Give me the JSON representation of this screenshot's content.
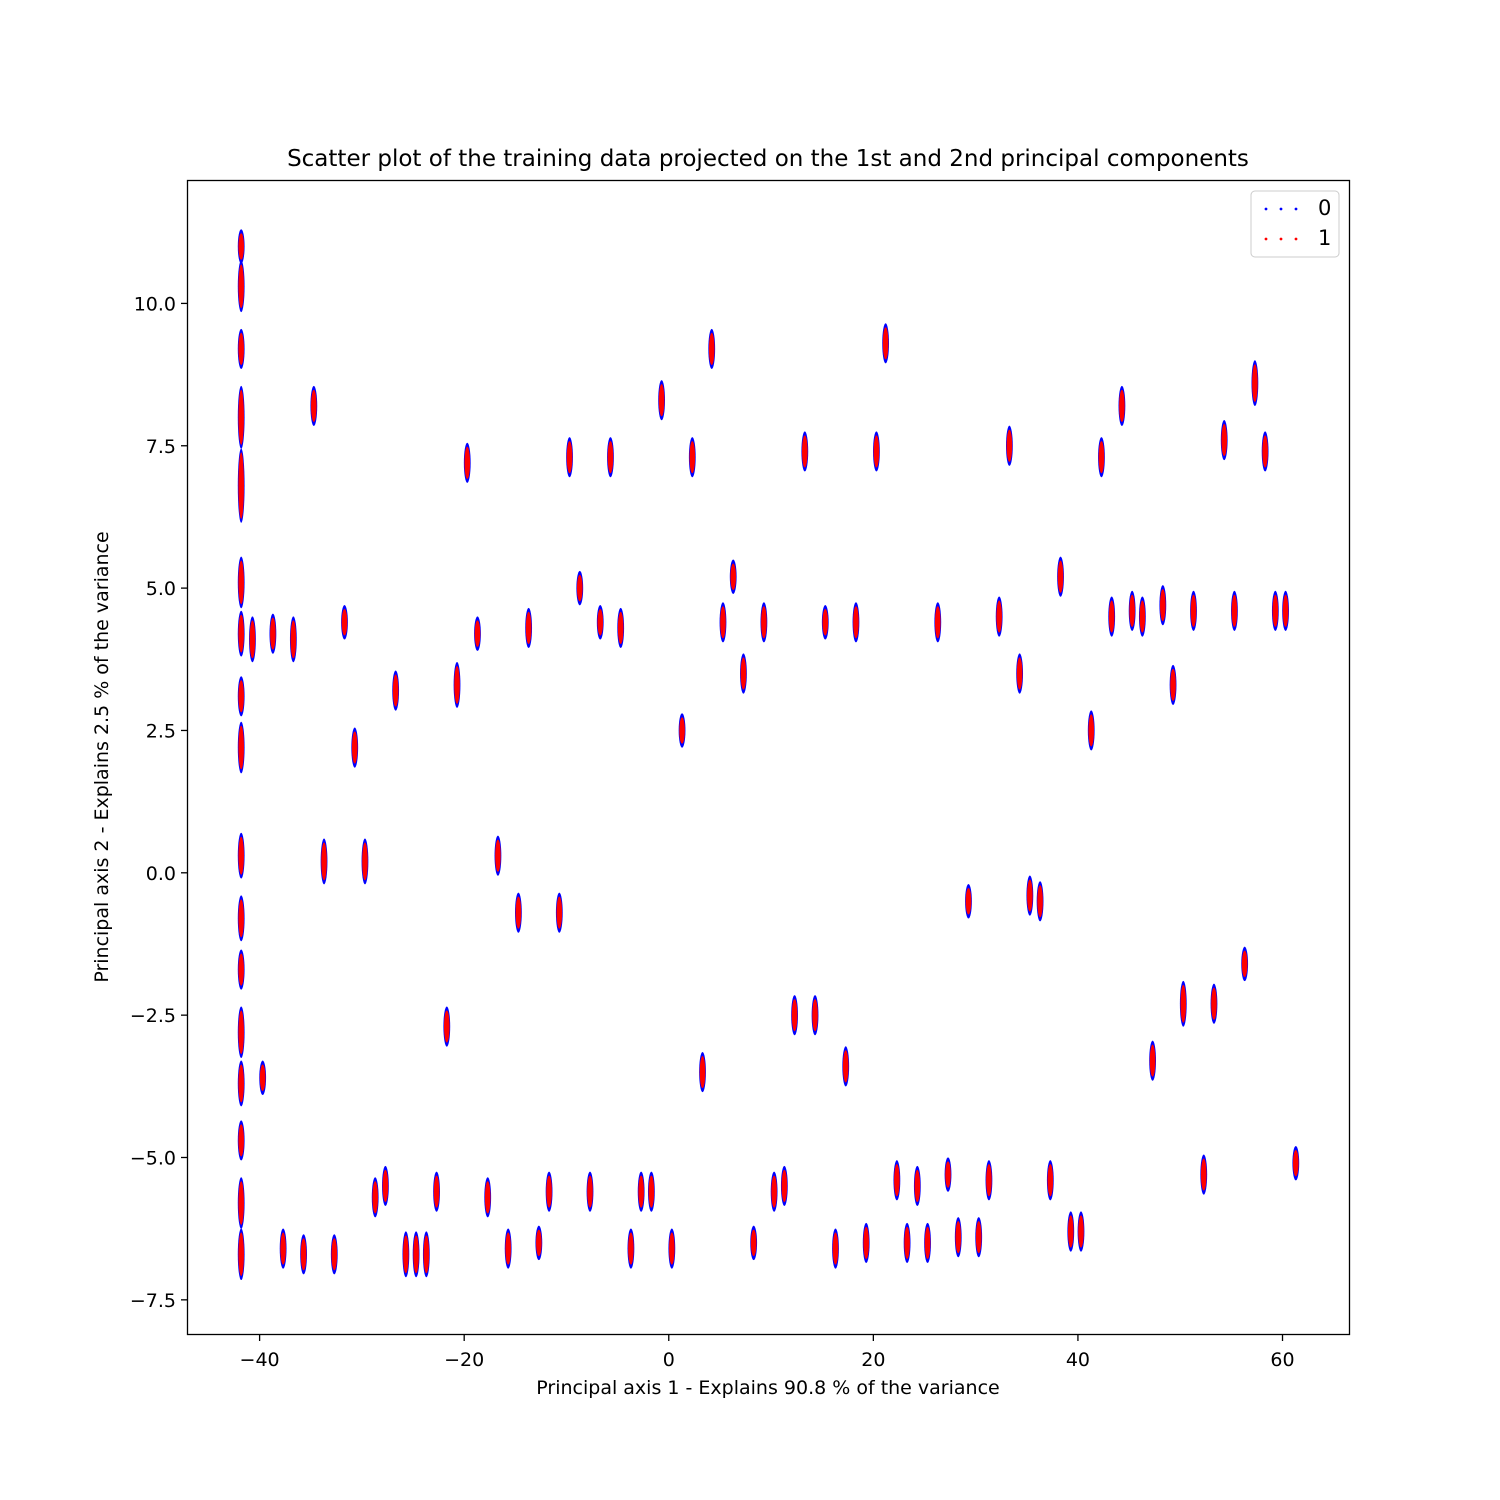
{
  "chart_data": {
    "type": "scatter",
    "title": "Scatter plot of the training data projected on the 1st and 2nd principal components",
    "xlabel": "Principal axis 1 - Explains 90.8 % of the variance",
    "ylabel": "Principal axis 2 - Explains 2.5 % of the variance",
    "xlim": [
      -47,
      66.5
    ],
    "ylim": [
      -8.1,
      12.15
    ],
    "xticks": [
      -40,
      -20,
      0,
      20,
      40,
      60
    ],
    "xtick_labels": [
      "−40",
      "−20",
      "0",
      "20",
      "40",
      "60"
    ],
    "yticks": [
      -7.5,
      -5.0,
      -2.5,
      0.0,
      2.5,
      5.0,
      7.5,
      10.0
    ],
    "ytick_labels": [
      "−7.5",
      "−5.0",
      "−2.5",
      "0.0",
      "2.5",
      "5.0",
      "7.5",
      "10.0"
    ],
    "grid": false,
    "legend_position": "top-right",
    "series": [
      {
        "name": "0",
        "color": "#0000ff"
      },
      {
        "name": "1",
        "color": "#ff0000"
      }
    ],
    "clusters": [
      {
        "x": -41.8,
        "y": 11.0,
        "h": 0.25
      },
      {
        "x": -41.8,
        "y": 10.3,
        "h": 0.4
      },
      {
        "x": -41.8,
        "y": 9.2,
        "h": 0.3
      },
      {
        "x": -41.8,
        "y": 8.0,
        "h": 0.5
      },
      {
        "x": -41.8,
        "y": 6.8,
        "h": 0.6
      },
      {
        "x": -41.8,
        "y": 5.1,
        "h": 0.4
      },
      {
        "x": -41.8,
        "y": 4.2,
        "h": 0.35
      },
      {
        "x": -41.8,
        "y": 3.1,
        "h": 0.3
      },
      {
        "x": -41.8,
        "y": 2.2,
        "h": 0.4
      },
      {
        "x": -41.8,
        "y": 0.3,
        "h": 0.35
      },
      {
        "x": -41.8,
        "y": -0.8,
        "h": 0.35
      },
      {
        "x": -41.8,
        "y": -1.7,
        "h": 0.3
      },
      {
        "x": -41.8,
        "y": -2.8,
        "h": 0.4
      },
      {
        "x": -41.8,
        "y": -3.7,
        "h": 0.35
      },
      {
        "x": -41.8,
        "y": -4.7,
        "h": 0.3
      },
      {
        "x": -41.8,
        "y": -5.8,
        "h": 0.4
      },
      {
        "x": -41.8,
        "y": -6.7,
        "h": 0.4
      },
      {
        "x": -40.7,
        "y": 4.1,
        "h": 0.35
      },
      {
        "x": -39.7,
        "y": -3.6,
        "h": 0.25
      },
      {
        "x": -38.7,
        "y": 4.2,
        "h": 0.3
      },
      {
        "x": -37.7,
        "y": -6.6,
        "h": 0.3
      },
      {
        "x": -36.7,
        "y": 4.1,
        "h": 0.35
      },
      {
        "x": -35.7,
        "y": -6.7,
        "h": 0.3
      },
      {
        "x": -34.7,
        "y": 8.2,
        "h": 0.3
      },
      {
        "x": -33.7,
        "y": 0.2,
        "h": 0.35
      },
      {
        "x": -32.7,
        "y": -6.7,
        "h": 0.3
      },
      {
        "x": -31.7,
        "y": 4.4,
        "h": 0.25
      },
      {
        "x": -30.7,
        "y": 2.2,
        "h": 0.3
      },
      {
        "x": -29.7,
        "y": 0.2,
        "h": 0.35
      },
      {
        "x": -28.7,
        "y": -5.7,
        "h": 0.3
      },
      {
        "x": -27.7,
        "y": -5.5,
        "h": 0.3
      },
      {
        "x": -26.7,
        "y": 3.2,
        "h": 0.3
      },
      {
        "x": -25.7,
        "y": -6.7,
        "h": 0.35
      },
      {
        "x": -24.7,
        "y": -6.7,
        "h": 0.35
      },
      {
        "x": -23.7,
        "y": -6.7,
        "h": 0.35
      },
      {
        "x": -22.7,
        "y": -5.6,
        "h": 0.3
      },
      {
        "x": -21.7,
        "y": -2.7,
        "h": 0.3
      },
      {
        "x": -20.7,
        "y": 3.3,
        "h": 0.35
      },
      {
        "x": -19.7,
        "y": 7.2,
        "h": 0.3
      },
      {
        "x": -18.7,
        "y": 4.2,
        "h": 0.25
      },
      {
        "x": -17.7,
        "y": -5.7,
        "h": 0.3
      },
      {
        "x": -16.7,
        "y": 0.3,
        "h": 0.3
      },
      {
        "x": -15.7,
        "y": -6.6,
        "h": 0.3
      },
      {
        "x": -14.7,
        "y": -0.7,
        "h": 0.3
      },
      {
        "x": -13.7,
        "y": 4.3,
        "h": 0.3
      },
      {
        "x": -12.7,
        "y": -6.5,
        "h": 0.25
      },
      {
        "x": -11.7,
        "y": -5.6,
        "h": 0.3
      },
      {
        "x": -10.7,
        "y": -0.7,
        "h": 0.3
      },
      {
        "x": -9.7,
        "y": 7.3,
        "h": 0.3
      },
      {
        "x": -8.7,
        "y": 5.0,
        "h": 0.25
      },
      {
        "x": -7.7,
        "y": -5.6,
        "h": 0.3
      },
      {
        "x": -6.7,
        "y": 4.4,
        "h": 0.25
      },
      {
        "x": -5.7,
        "y": 7.3,
        "h": 0.3
      },
      {
        "x": -4.7,
        "y": 4.3,
        "h": 0.3
      },
      {
        "x": -3.7,
        "y": -6.6,
        "h": 0.3
      },
      {
        "x": -2.7,
        "y": -5.6,
        "h": 0.3
      },
      {
        "x": -1.7,
        "y": -5.6,
        "h": 0.3
      },
      {
        "x": -0.7,
        "y": 8.3,
        "h": 0.3
      },
      {
        "x": 0.3,
        "y": -6.6,
        "h": 0.3
      },
      {
        "x": 1.3,
        "y": 2.5,
        "h": 0.25
      },
      {
        "x": 2.3,
        "y": 7.3,
        "h": 0.3
      },
      {
        "x": 3.3,
        "y": -3.5,
        "h": 0.3
      },
      {
        "x": 4.2,
        "y": 9.2,
        "h": 0.3
      },
      {
        "x": 5.3,
        "y": 4.4,
        "h": 0.3
      },
      {
        "x": 6.3,
        "y": 5.2,
        "h": 0.25
      },
      {
        "x": 7.3,
        "y": 3.5,
        "h": 0.3
      },
      {
        "x": 8.3,
        "y": -6.5,
        "h": 0.25
      },
      {
        "x": 9.3,
        "y": 4.4,
        "h": 0.3
      },
      {
        "x": 10.3,
        "y": -5.6,
        "h": 0.3
      },
      {
        "x": 11.3,
        "y": -5.5,
        "h": 0.3
      },
      {
        "x": 12.3,
        "y": -2.5,
        "h": 0.3
      },
      {
        "x": 13.3,
        "y": 7.4,
        "h": 0.3
      },
      {
        "x": 14.3,
        "y": -2.5,
        "h": 0.3
      },
      {
        "x": 15.3,
        "y": 4.4,
        "h": 0.25
      },
      {
        "x": 16.3,
        "y": -6.6,
        "h": 0.3
      },
      {
        "x": 17.3,
        "y": -3.4,
        "h": 0.3
      },
      {
        "x": 18.3,
        "y": 4.4,
        "h": 0.3
      },
      {
        "x": 19.3,
        "y": -6.5,
        "h": 0.3
      },
      {
        "x": 20.3,
        "y": 7.4,
        "h": 0.3
      },
      {
        "x": 21.2,
        "y": 9.3,
        "h": 0.3
      },
      {
        "x": 22.3,
        "y": -5.4,
        "h": 0.3
      },
      {
        "x": 23.3,
        "y": -6.5,
        "h": 0.3
      },
      {
        "x": 24.3,
        "y": -5.5,
        "h": 0.3
      },
      {
        "x": 25.3,
        "y": -6.5,
        "h": 0.3
      },
      {
        "x": 26.3,
        "y": 4.4,
        "h": 0.3
      },
      {
        "x": 27.3,
        "y": -5.3,
        "h": 0.25
      },
      {
        "x": 28.3,
        "y": -6.4,
        "h": 0.3
      },
      {
        "x": 29.3,
        "y": -0.5,
        "h": 0.25
      },
      {
        "x": 30.3,
        "y": -6.4,
        "h": 0.3
      },
      {
        "x": 31.3,
        "y": -5.4,
        "h": 0.3
      },
      {
        "x": 32.3,
        "y": 4.5,
        "h": 0.3
      },
      {
        "x": 33.3,
        "y": 7.5,
        "h": 0.3
      },
      {
        "x": 34.3,
        "y": 3.5,
        "h": 0.3
      },
      {
        "x": 35.3,
        "y": -0.4,
        "h": 0.3
      },
      {
        "x": 36.3,
        "y": -0.5,
        "h": 0.3
      },
      {
        "x": 37.3,
        "y": -5.4,
        "h": 0.3
      },
      {
        "x": 38.3,
        "y": 5.2,
        "h": 0.3
      },
      {
        "x": 39.3,
        "y": -6.3,
        "h": 0.3
      },
      {
        "x": 40.3,
        "y": -6.3,
        "h": 0.3
      },
      {
        "x": 41.3,
        "y": 2.5,
        "h": 0.3
      },
      {
        "x": 42.3,
        "y": 7.3,
        "h": 0.3
      },
      {
        "x": 43.3,
        "y": 4.5,
        "h": 0.3
      },
      {
        "x": 44.3,
        "y": 8.2,
        "h": 0.3
      },
      {
        "x": 45.3,
        "y": 4.6,
        "h": 0.3
      },
      {
        "x": 46.3,
        "y": 4.5,
        "h": 0.3
      },
      {
        "x": 47.3,
        "y": -3.3,
        "h": 0.3
      },
      {
        "x": 48.3,
        "y": 4.7,
        "h": 0.3
      },
      {
        "x": 49.3,
        "y": 3.3,
        "h": 0.3
      },
      {
        "x": 50.3,
        "y": -2.3,
        "h": 0.35
      },
      {
        "x": 51.3,
        "y": 4.6,
        "h": 0.3
      },
      {
        "x": 52.3,
        "y": -5.3,
        "h": 0.3
      },
      {
        "x": 53.3,
        "y": -2.3,
        "h": 0.3
      },
      {
        "x": 54.3,
        "y": 7.6,
        "h": 0.3
      },
      {
        "x": 55.3,
        "y": 4.6,
        "h": 0.3
      },
      {
        "x": 56.3,
        "y": -1.6,
        "h": 0.25
      },
      {
        "x": 57.3,
        "y": 8.6,
        "h": 0.35
      },
      {
        "x": 58.3,
        "y": 7.4,
        "h": 0.3
      },
      {
        "x": 59.3,
        "y": 4.6,
        "h": 0.3
      },
      {
        "x": 60.3,
        "y": 4.6,
        "h": 0.3
      },
      {
        "x": 61.3,
        "y": -5.1,
        "h": 0.25
      }
    ]
  }
}
